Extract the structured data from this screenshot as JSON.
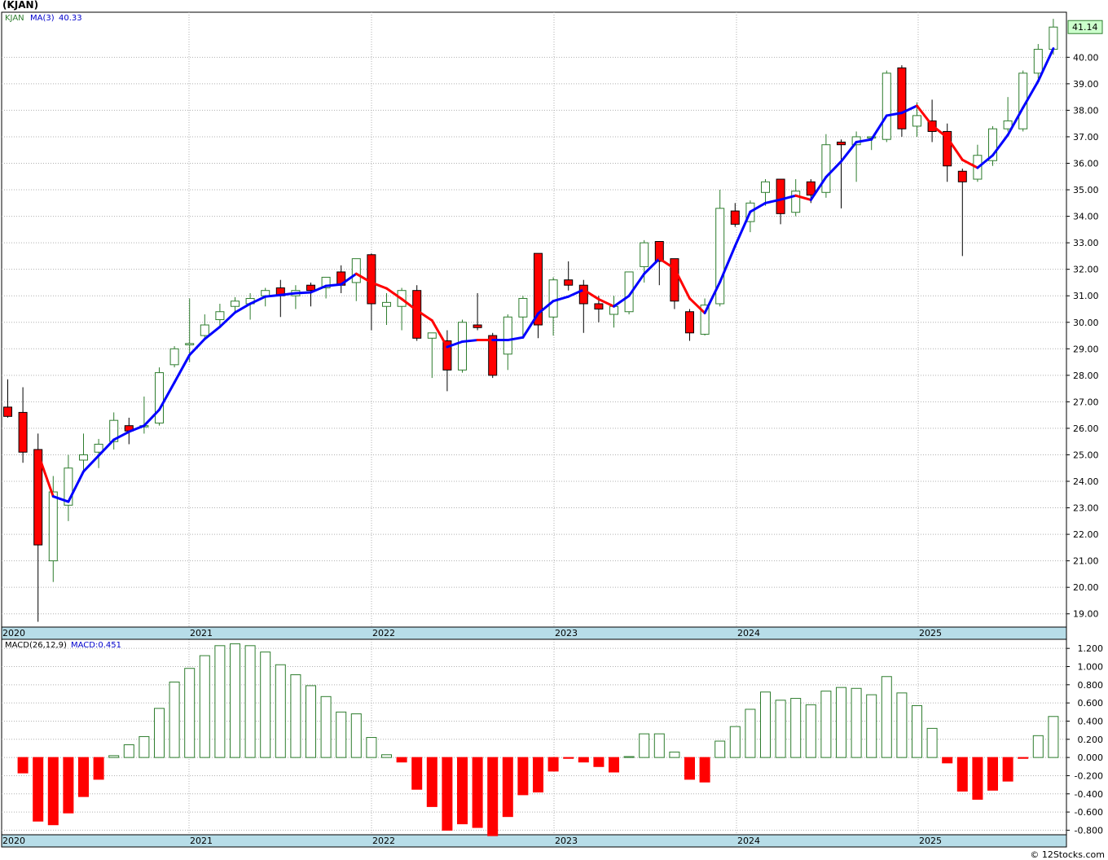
{
  "title": "(KJAN)",
  "credit": "© 12Stocks.com",
  "price_legend": {
    "symbol": "KJAN",
    "ma_label": "MA(3)",
    "ma_value": "40.33"
  },
  "macd_legend": {
    "label": "MACD(26,12,9)",
    "value_label": "MACD:0.451"
  },
  "last_price": "41.14",
  "colors": {
    "up": "#2e7d2e",
    "down": "#ff0000",
    "ma_up": "#0000ff",
    "ma_down": "#ff0000",
    "axis_band": "#b7dde8",
    "grid": "#b0b0b0"
  },
  "chart_data": [
    {
      "type": "candlestick",
      "ylim": [
        18.5,
        41.7
      ],
      "yticks": [
        "19.00",
        "20.00",
        "21.00",
        "22.00",
        "23.00",
        "24.00",
        "25.00",
        "26.00",
        "27.00",
        "28.00",
        "29.00",
        "30.00",
        "31.00",
        "32.00",
        "33.00",
        "34.00",
        "35.00",
        "36.00",
        "37.00",
        "38.00",
        "39.00",
        "40.00"
      ],
      "xlabels": [
        "2020",
        "2021",
        "2022",
        "2023",
        "2024",
        "2025"
      ],
      "ohlc": [
        [
          26.8,
          27.85,
          26.4,
          26.45
        ],
        [
          26.6,
          27.55,
          24.7,
          25.1
        ],
        [
          25.2,
          25.8,
          18.7,
          21.6
        ],
        [
          21.0,
          24.2,
          20.2,
          23.6
        ],
        [
          23.1,
          25.0,
          22.5,
          24.5
        ],
        [
          24.8,
          25.8,
          24.4,
          25.0
        ],
        [
          25.1,
          25.6,
          24.5,
          25.4
        ],
        [
          25.5,
          26.6,
          25.2,
          26.3
        ],
        [
          26.1,
          26.4,
          25.4,
          25.9
        ],
        [
          26.1,
          27.2,
          25.8,
          26.1
        ],
        [
          26.2,
          28.3,
          26.1,
          28.1
        ],
        [
          28.4,
          29.1,
          28.3,
          29.0
        ],
        [
          29.15,
          30.9,
          28.5,
          29.2
        ],
        [
          29.5,
          30.3,
          29.4,
          29.9
        ],
        [
          30.1,
          30.7,
          29.8,
          30.4
        ],
        [
          30.6,
          30.95,
          30.4,
          30.8
        ],
        [
          30.7,
          31.1,
          30.1,
          30.9
        ],
        [
          31.0,
          31.3,
          30.6,
          31.2
        ],
        [
          31.3,
          31.6,
          30.2,
          31.0
        ],
        [
          31.0,
          31.4,
          30.5,
          31.2
        ],
        [
          31.4,
          31.5,
          30.6,
          31.2
        ],
        [
          31.3,
          31.7,
          30.9,
          31.7
        ],
        [
          31.9,
          32.15,
          31.1,
          31.4
        ],
        [
          31.5,
          32.4,
          30.8,
          32.4
        ],
        [
          32.55,
          32.6,
          29.7,
          30.7
        ],
        [
          30.6,
          31.1,
          29.9,
          30.75
        ],
        [
          30.6,
          31.3,
          29.7,
          31.2
        ],
        [
          31.2,
          31.4,
          29.3,
          29.4
        ],
        [
          29.4,
          29.6,
          27.9,
          29.6
        ],
        [
          29.3,
          29.7,
          27.4,
          28.2
        ],
        [
          28.2,
          30.1,
          28.1,
          30.0
        ],
        [
          29.9,
          31.1,
          29.7,
          29.8
        ],
        [
          29.5,
          29.6,
          27.9,
          28.0
        ],
        [
          28.8,
          30.3,
          28.2,
          30.2
        ],
        [
          30.2,
          31.0,
          29.5,
          30.9
        ],
        [
          32.6,
          32.6,
          29.4,
          29.9
        ],
        [
          30.2,
          31.7,
          29.5,
          31.6
        ],
        [
          31.6,
          32.3,
          31.2,
          31.4
        ],
        [
          31.4,
          31.6,
          29.6,
          30.7
        ],
        [
          30.7,
          31.0,
          30.0,
          30.5
        ],
        [
          30.3,
          31.0,
          29.8,
          30.6
        ],
        [
          30.4,
          31.9,
          30.3,
          31.9
        ],
        [
          32.1,
          33.1,
          31.5,
          33.0
        ],
        [
          33.05,
          33.05,
          31.4,
          32.3
        ],
        [
          32.4,
          32.4,
          30.5,
          30.8
        ],
        [
          30.4,
          30.5,
          29.3,
          29.6
        ],
        [
          29.55,
          30.9,
          29.5,
          30.65
        ],
        [
          30.7,
          35.0,
          30.6,
          34.3
        ],
        [
          34.2,
          34.5,
          33.6,
          33.7
        ],
        [
          33.8,
          34.6,
          33.4,
          34.5
        ],
        [
          34.9,
          35.4,
          34.4,
          35.3
        ],
        [
          35.4,
          35.4,
          33.7,
          34.1
        ],
        [
          34.15,
          35.4,
          34.0,
          34.95
        ],
        [
          35.3,
          35.4,
          34.5,
          34.8
        ],
        [
          34.9,
          37.1,
          34.7,
          36.7
        ],
        [
          36.8,
          36.9,
          34.3,
          36.7
        ],
        [
          36.7,
          37.2,
          35.3,
          37.0
        ],
        [
          37.0,
          37.0,
          36.5,
          37.0
        ],
        [
          36.9,
          39.5,
          36.8,
          39.4
        ],
        [
          39.6,
          39.7,
          37.0,
          37.3
        ],
        [
          37.4,
          38.3,
          37.0,
          37.8
        ],
        [
          37.6,
          38.4,
          36.8,
          37.2
        ],
        [
          37.2,
          37.5,
          35.3,
          35.9
        ],
        [
          35.7,
          35.8,
          32.5,
          35.3
        ],
        [
          35.4,
          36.7,
          35.3,
          36.3
        ],
        [
          36.1,
          37.4,
          35.9,
          37.3
        ],
        [
          37.3,
          38.5,
          37.2,
          37.6
        ],
        [
          37.3,
          39.5,
          37.2,
          39.4
        ],
        [
          39.4,
          40.5,
          39.2,
          40.3
        ],
        [
          40.3,
          41.45,
          40.1,
          41.14
        ]
      ],
      "ma3": [
        null,
        null,
        25.05,
        23.43,
        23.23,
        24.37,
        24.97,
        25.57,
        25.87,
        26.1,
        26.7,
        27.73,
        28.77,
        29.37,
        29.83,
        30.37,
        30.7,
        30.97,
        31.03,
        31.1,
        31.13,
        31.37,
        31.43,
        31.83,
        31.5,
        31.28,
        30.88,
        30.45,
        30.07,
        29.07,
        29.27,
        29.33,
        29.33,
        29.33,
        29.43,
        30.33,
        30.8,
        30.97,
        31.23,
        30.87,
        30.6,
        31.0,
        31.83,
        32.4,
        32.03,
        30.9,
        30.35,
        31.52,
        32.88,
        34.17,
        34.5,
        34.63,
        34.78,
        34.62,
        35.48,
        36.07,
        36.8,
        36.9,
        37.8,
        37.9,
        38.17,
        37.43,
        36.97,
        36.13,
        35.83,
        36.3,
        37.07,
        38.1,
        39.1,
        40.33
      ],
      "ma3_color": [
        "b",
        "b",
        "r",
        "r",
        "b",
        "b",
        "b",
        "b",
        "b",
        "b",
        "b",
        "b",
        "b",
        "b",
        "b",
        "b",
        "b",
        "b",
        "b",
        "b",
        "b",
        "b",
        "b",
        "b",
        "r",
        "r",
        "r",
        "r",
        "r",
        "r",
        "b",
        "b",
        "r",
        "b",
        "b",
        "b",
        "b",
        "b",
        "b",
        "r",
        "r",
        "b",
        "b",
        "b",
        "r",
        "r",
        "r",
        "b",
        "b",
        "b",
        "b",
        "b",
        "b",
        "r",
        "b",
        "b",
        "b",
        "b",
        "b",
        "b",
        "b",
        "r",
        "r",
        "r",
        "r",
        "b",
        "b",
        "b",
        "b",
        "b"
      ]
    },
    {
      "type": "bar",
      "ylim": [
        -0.85,
        1.3
      ],
      "yticks": [
        "1.200",
        "1.000",
        "0.800",
        "0.600",
        "0.400",
        "0.200",
        "0.000",
        "-0.200",
        "-0.400",
        "-0.600",
        "-0.800"
      ],
      "xlabels": [
        "2020",
        "2021",
        "2022",
        "2023",
        "2024",
        "2025"
      ],
      "values": [
        null,
        -0.17,
        -0.7,
        -0.74,
        -0.61,
        -0.43,
        -0.24,
        0.02,
        0.14,
        0.23,
        0.54,
        0.83,
        0.98,
        1.12,
        1.23,
        1.25,
        1.23,
        1.16,
        1.02,
        0.91,
        0.79,
        0.67,
        0.5,
        0.48,
        0.22,
        0.03,
        -0.05,
        -0.35,
        -0.54,
        -0.8,
        -0.73,
        -0.77,
        -0.86,
        -0.65,
        -0.41,
        -0.38,
        -0.15,
        -0.01,
        -0.05,
        -0.1,
        -0.16,
        0.01,
        0.26,
        0.26,
        0.06,
        -0.24,
        -0.27,
        0.18,
        0.34,
        0.53,
        0.72,
        0.63,
        0.65,
        0.58,
        0.73,
        0.77,
        0.76,
        0.69,
        0.89,
        0.71,
        0.57,
        0.32,
        -0.06,
        -0.37,
        -0.46,
        -0.36,
        -0.26,
        -0.01,
        0.24,
        0.451
      ]
    }
  ]
}
